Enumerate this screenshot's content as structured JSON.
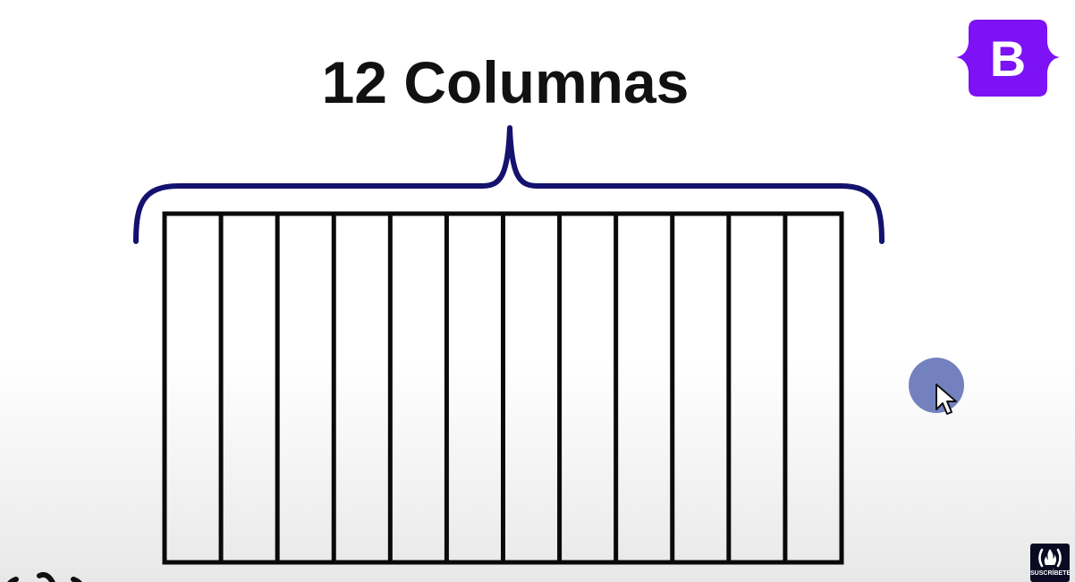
{
  "title": "12 Columnas",
  "diagram": {
    "column_count": 12,
    "brace_color": "#14126e",
    "grid_stroke_color": "#0a0a0a"
  },
  "logo": {
    "letter": "B",
    "color": "#7c12f5"
  },
  "cursor": {
    "halo_color": "#7382be",
    "icon": "pointer-arrow-icon"
  },
  "subscribe_badge": {
    "label": "SUSCRÍBETE",
    "icon": "freecodecamp-fire-icon",
    "background": "#0a0a23"
  },
  "corner_mark": {
    "icon": "freecodecamp-logo-icon"
  }
}
